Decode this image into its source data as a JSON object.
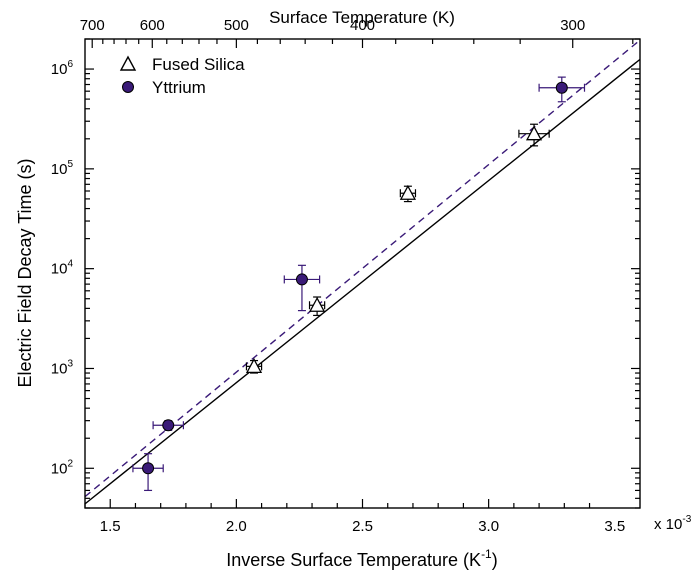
{
  "chart_data": {
    "type": "scatter",
    "x_scale": "linear",
    "y_scale": "log",
    "xlabel": "Inverse Surface Temperature (K",
    "xlabel_sup": "-1",
    "xlabel_close": ")",
    "ylabel": "Electric Field Decay Time (s)",
    "top_xlabel": "Surface Temperature (K)",
    "xlim": [
      0.0014,
      0.0036
    ],
    "ylim": [
      40,
      2000000
    ],
    "x_ticks": [
      0.0015,
      0.002,
      0.0025,
      0.003,
      0.0035
    ],
    "x_tick_labels": [
      "1.5",
      "2.0",
      "2.5",
      "3.0",
      "3.5"
    ],
    "x_multiplier_label": "x 10",
    "x_multiplier_exp": "-3",
    "y_ticks": [
      100,
      1000,
      10000,
      100000,
      1000000
    ],
    "y_tick_base": "10",
    "y_tick_exps": [
      "2",
      "3",
      "4",
      "5",
      "6"
    ],
    "top_ticks_K": [
      700,
      600,
      500,
      400,
      300
    ],
    "top_tick_labels": [
      "700",
      "600",
      "500",
      "400",
      "300"
    ],
    "grid": false,
    "legend_position": "top-left",
    "series": [
      {
        "name": "Fused Silica",
        "marker": "open-triangle",
        "color": "#000000",
        "points": [
          {
            "x": 0.00207,
            "y": 1050,
            "xerr": 3e-05,
            "yerr_low": 150,
            "yerr_high": 150
          },
          {
            "x": 0.00232,
            "y": 4300,
            "xerr": 3e-05,
            "yerr_low": 900,
            "yerr_high": 900
          },
          {
            "x": 0.00268,
            "y": 57000,
            "xerr": 3e-05,
            "yerr_low": 10000,
            "yerr_high": 10000
          },
          {
            "x": 0.00318,
            "y": 225000,
            "xerr": 6e-05,
            "yerr_low": 55000,
            "yerr_high": 55000
          }
        ],
        "fit_line": {
          "style": "solid",
          "color": "#000000",
          "x": [
            0.0014,
            0.0036
          ],
          "y": [
            44,
            1250000
          ]
        }
      },
      {
        "name": "Yttrium",
        "marker": "filled-circle",
        "color": "#3a1a78",
        "points": [
          {
            "x": 0.00165,
            "y": 100,
            "xerr": 6e-05,
            "yerr_low": 40,
            "yerr_high": 40
          },
          {
            "x": 0.00173,
            "y": 270,
            "xerr": 6e-05,
            "yerr_low": 30,
            "yerr_high": 30
          },
          {
            "x": 0.00226,
            "y": 7800,
            "xerr": 7e-05,
            "yerr_low": 4000,
            "yerr_high": 3000
          },
          {
            "x": 0.00329,
            "y": 650000,
            "xerr": 9e-05,
            "yerr_low": 180000,
            "yerr_high": 180000
          }
        ],
        "fit_line": {
          "style": "dashed",
          "color": "#3a1a78",
          "x": [
            0.0014,
            0.0036
          ],
          "y": [
            52,
            1950000
          ]
        }
      }
    ]
  }
}
